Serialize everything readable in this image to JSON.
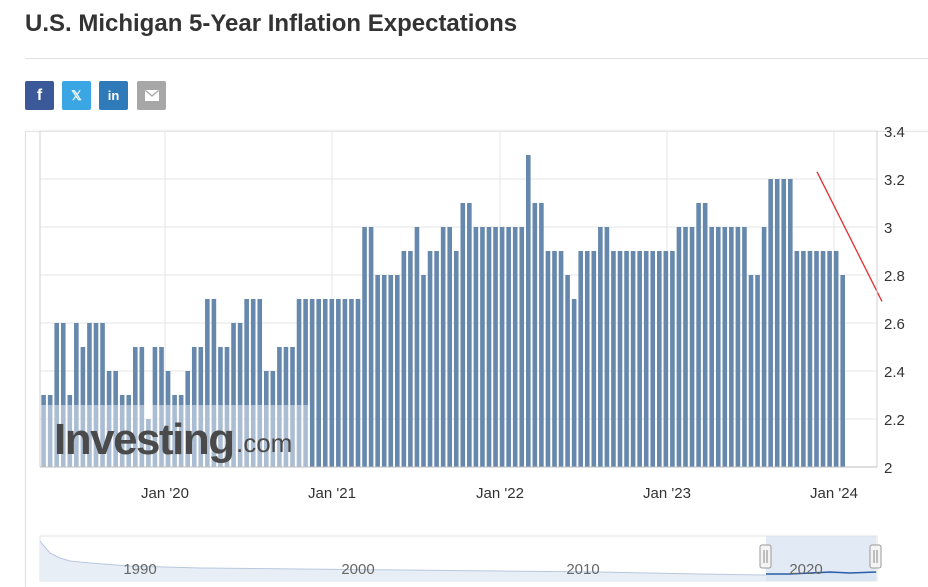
{
  "page": {
    "title": "U.S. Michigan 5-Year Inflation Expectations",
    "share_buttons": [
      {
        "label": "f",
        "icon": "facebook-icon",
        "color": "#3b5998"
      },
      {
        "label": "𝕏",
        "icon": "x-twitter-icon",
        "color": "#3aa7e4"
      },
      {
        "label": "in",
        "icon": "linkedin-icon",
        "color": "#2f7ab8"
      },
      {
        "label": "",
        "icon": "email-icon",
        "color": "#a7a7a7"
      }
    ]
  },
  "chart_data": {
    "type": "bar",
    "bar_color": "#6788ad",
    "trend_line_color": "#e03030",
    "watermark": {
      "main": "Investing",
      "suffix": ".com"
    },
    "ylim": [
      2.0,
      3.4
    ],
    "yticks": [
      "2",
      "2.2",
      "2.4",
      "2.6",
      "2.8",
      "3",
      "3.2",
      "3.4"
    ],
    "y_axis_side": "right",
    "grid": true,
    "x_tick_labels": [
      "Jan '20",
      "Jan '21",
      "Jan '22",
      "Jan '23",
      "Jan '24"
    ],
    "series": [
      {
        "values": [
          2.3,
          2.3,
          2.6,
          2.6,
          2.3,
          2.6,
          2.5,
          2.6,
          2.6,
          2.6,
          2.4,
          2.4,
          2.3,
          2.3,
          2.5,
          2.5,
          2.2,
          2.5,
          2.5,
          2.4,
          2.3,
          2.3,
          2.4,
          2.5,
          2.5,
          2.7,
          2.7,
          2.5,
          2.5,
          2.6,
          2.6,
          2.7,
          2.7,
          2.7,
          2.4,
          2.4,
          2.5,
          2.5,
          2.5,
          2.7,
          2.7,
          2.7,
          2.7,
          2.7,
          2.7,
          2.7,
          2.7,
          2.7,
          2.7,
          3.0,
          3.0,
          2.8,
          2.8,
          2.8,
          2.8,
          2.9,
          2.9,
          3.0,
          2.8,
          2.9,
          2.9,
          3.0,
          3.0,
          2.9,
          3.1,
          3.1,
          3.0,
          3.0,
          3.0,
          3.0,
          3.0,
          3.0,
          3.0,
          3.0,
          3.3,
          3.1,
          3.1,
          2.9,
          2.9,
          2.9,
          2.8,
          2.7,
          2.9,
          2.9,
          2.9,
          3.0,
          3.0,
          2.9,
          2.9,
          2.9,
          2.9,
          2.9,
          2.9,
          2.9,
          2.9,
          2.9,
          2.9,
          3.0,
          3.0,
          3.0,
          3.1,
          3.1,
          3.0,
          3.0,
          3.0,
          3.0,
          3.0,
          3.0,
          2.8,
          2.8,
          3.0,
          3.2,
          3.2,
          3.2,
          3.2,
          2.9,
          2.9,
          2.9,
          2.9,
          2.9,
          2.9,
          2.9,
          2.8
        ]
      }
    ],
    "navigator": {
      "labels": [
        "1990",
        "2000",
        "2010",
        "2020"
      ]
    }
  }
}
